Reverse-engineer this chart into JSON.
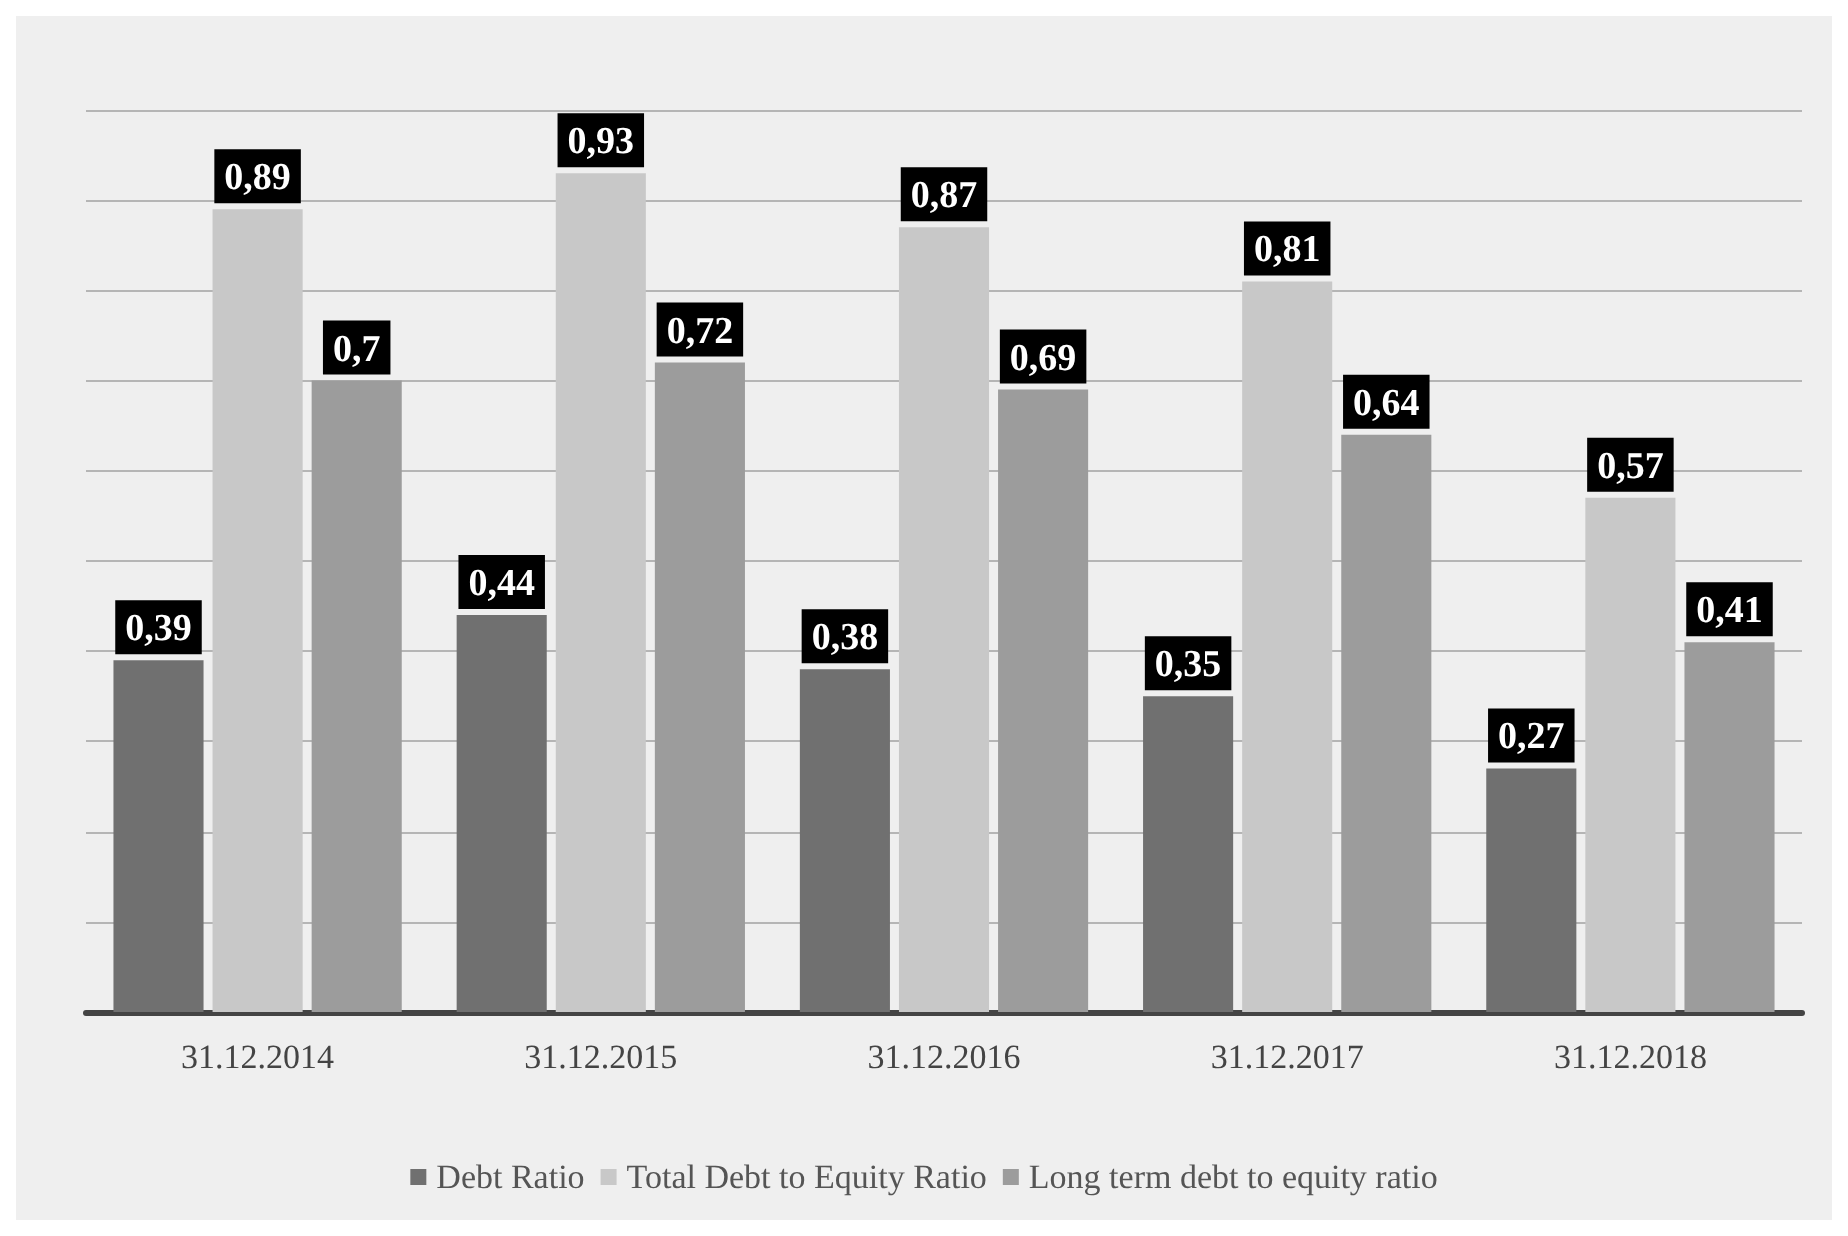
{
  "chart_data": {
    "type": "bar",
    "categories": [
      "31.12.2014",
      "31.12.2015",
      "31.12.2016",
      "31.12.2017",
      "31.12.2018"
    ],
    "series": [
      {
        "name": "Debt Ratio",
        "color": "#707070",
        "values": [
          0.39,
          0.44,
          0.38,
          0.35,
          0.27
        ],
        "value_labels": [
          "0,39",
          "0,44",
          "0,38",
          "0,35",
          "0,27"
        ]
      },
      {
        "name": "Total Debt to Equity Ratio",
        "color": "#c8c8c8",
        "values": [
          0.89,
          0.93,
          0.87,
          0.81,
          0.57
        ],
        "value_labels": [
          "0,89",
          "0,93",
          "0,87",
          "0,81",
          "0,57"
        ]
      },
      {
        "name": "Long term debt to equity ratio",
        "color": "#9c9c9c",
        "values": [
          0.7,
          0.72,
          0.69,
          0.64,
          0.41
        ],
        "value_labels": [
          "0,7",
          "0,72",
          "0,69",
          "0,64",
          "0,41"
        ]
      }
    ],
    "ylim": [
      0,
      1
    ],
    "yticks": [
      {
        "value": 0,
        "label": null
      },
      {
        "value": 0.1,
        "label": null
      },
      {
        "value": 0.2,
        "label": null
      },
      {
        "value": 0.3,
        "label": null
      },
      {
        "value": 0.4,
        "label": null
      },
      {
        "value": 0.5,
        "label": null
      },
      {
        "value": 0.6,
        "label": null
      },
      {
        "value": 0.7,
        "label": null
      },
      {
        "value": 0.8,
        "label": null
      },
      {
        "value": 0.9,
        "label": null
      },
      {
        "value": 1,
        "label": null
      }
    ],
    "grid": "y",
    "legend": "bottom",
    "tick_labels": "x"
  }
}
